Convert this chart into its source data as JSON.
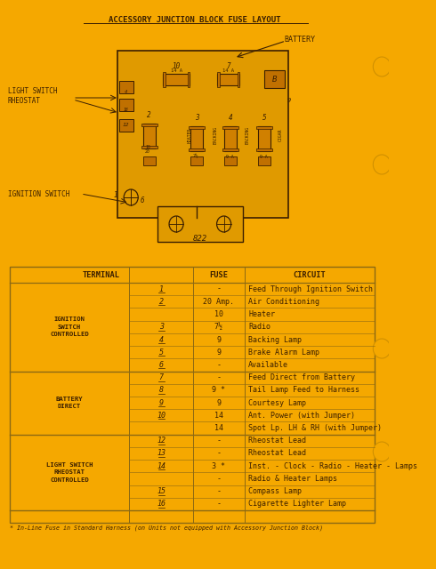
{
  "bg_color": "#F5A800",
  "title": "ACCESSORY JUNCTION BLOCK FUSE LAYOUT",
  "table_rows": [
    [
      "IGNITION\nSWITCH\nCONTROLLED",
      "1",
      "-",
      "Feed Through Ignition Switch"
    ],
    [
      "",
      "2",
      "20 Amp.",
      "Air Conditioning"
    ],
    [
      "",
      "",
      "10",
      "Heater"
    ],
    [
      "",
      "3",
      "7½",
      "Radio"
    ],
    [
      "",
      "4",
      "9",
      "Backing Lamp"
    ],
    [
      "",
      "5",
      "9",
      "Brake Alarm Lamp"
    ],
    [
      "",
      "6",
      "-",
      "Available"
    ],
    [
      "BATTERY\nDIRECT",
      "7",
      "-",
      "Feed Direct from Battery"
    ],
    [
      "",
      "8",
      "9 *",
      "Tail Lamp Feed to Harness"
    ],
    [
      "",
      "9",
      "9",
      "Courtesy Lamp"
    ],
    [
      "",
      "10",
      "14",
      "Ant. Power (with Jumper)"
    ],
    [
      "",
      "",
      "14",
      "Spot Lp. LH & RH (with Jumper)"
    ],
    [
      "LIGHT SWITCH\nRHEOSTAT\nCONTROLLED",
      "12",
      "-",
      "Rheostat Lead"
    ],
    [
      "",
      "13",
      "-",
      "Rheostat Lead"
    ],
    [
      "",
      "14",
      "3 *",
      "Inst. - Clock - Radio - Heater - Lamps"
    ],
    [
      "",
      "",
      "-",
      "Radio & Heater Lamps"
    ],
    [
      "",
      "15",
      "-",
      "Compass Lamp"
    ],
    [
      "",
      "16",
      "-",
      "Cigarette Lighter Lamp"
    ]
  ],
  "footnote": "* In-Line Fuse in Standard Harness (on Units not equipped with Accessory Junction Block)",
  "text_color": "#3B1F00",
  "line_color": "#8B6914",
  "fuse_color": "#D08000",
  "block_color": "#E09A00",
  "cap_color": "#C07000",
  "label_light_switch": "LIGHT SWITCH\nRHEOSTAT",
  "label_ignition": "IGNITION SWITCH",
  "label_battery": "BATTERY",
  "hole_color": "#D09000"
}
